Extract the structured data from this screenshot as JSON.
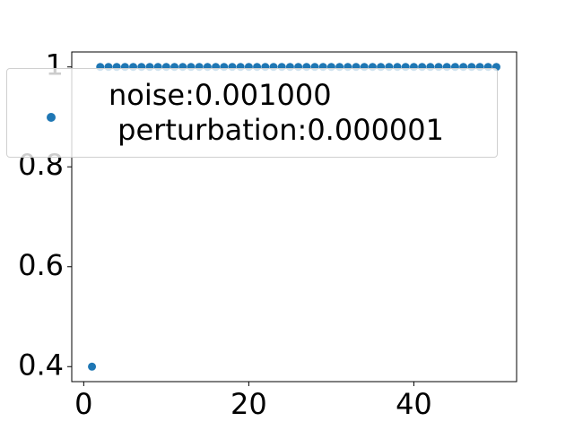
{
  "chart_data": {
    "type": "scatter",
    "x": [
      1,
      2,
      3,
      4,
      5,
      6,
      7,
      8,
      9,
      10,
      11,
      12,
      13,
      14,
      15,
      16,
      17,
      18,
      19,
      20,
      21,
      22,
      23,
      24,
      25,
      26,
      27,
      28,
      29,
      30,
      31,
      32,
      33,
      34,
      35,
      36,
      37,
      38,
      39,
      40,
      41,
      42,
      43,
      44,
      45,
      46,
      47,
      48,
      49,
      50
    ],
    "series": [
      {
        "name": "noise:0.001000\n perturbation:0.000001",
        "color": "#1f77b4",
        "values": [
          0.4,
          1,
          1,
          1,
          1,
          1,
          1,
          1,
          1,
          1,
          1,
          1,
          1,
          1,
          1,
          1,
          1,
          1,
          1,
          1,
          1,
          1,
          1,
          1,
          1,
          1,
          1,
          1,
          1,
          1,
          1,
          1,
          1,
          1,
          1,
          1,
          1,
          1,
          1,
          1,
          1,
          1,
          1,
          1,
          1,
          1,
          1,
          1,
          1,
          1
        ]
      }
    ],
    "xlim": [
      -1.45,
      52.45
    ],
    "xticks": [
      0,
      20,
      40
    ],
    "ylim": [
      0.37,
      1.03
    ],
    "yticks": [
      0.4,
      0.6,
      0.8,
      1.0
    ],
    "legend": "upper left"
  }
}
